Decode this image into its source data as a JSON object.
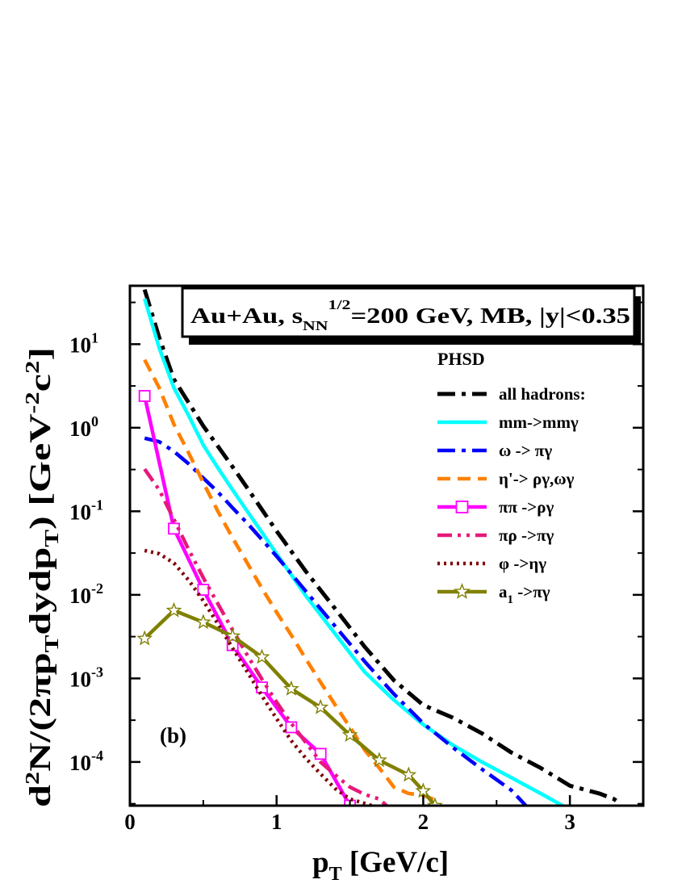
{
  "chart_data": {
    "type": "line",
    "title": "",
    "xlabel": "p_T [GeV/c]",
    "ylabel": "d^2N/(2πp_T dydp_T) [GeV^-2 c^2]",
    "xlim": [
      0,
      3.5
    ],
    "ylim": [
      3e-05,
      50
    ],
    "yscale": "log",
    "grid": false,
    "legend_position": "top-right",
    "legend_title": "PHSD",
    "x_ticks": [
      0,
      1,
      2,
      3
    ],
    "y_ticks": [
      0.0001,
      0.001,
      0.01,
      0.1,
      1,
      10
    ],
    "annotations": {
      "panel_label": "(b)",
      "header_box": "Au+Au, s_NN^1/2=200 GeV, MB, |y|<0.35"
    },
    "series": [
      {
        "name": "all hadrons:",
        "color": "#000000",
        "dash": "dashdot",
        "x": [
          0.1,
          0.2,
          0.3,
          0.4,
          0.5,
          0.6,
          0.7,
          0.8,
          0.9,
          1.0,
          1.2,
          1.4,
          1.6,
          1.8,
          2.0,
          2.2,
          2.4,
          2.6,
          2.8,
          3.0,
          3.2,
          3.3,
          3.35
        ],
        "y": [
          45,
          12,
          3.8,
          2.0,
          1.05,
          0.6,
          0.34,
          0.19,
          0.105,
          0.058,
          0.019,
          0.0068,
          0.0024,
          0.00095,
          0.00048,
          0.00034,
          0.00022,
          0.00013,
          8.5e-05,
          5.2e-05,
          4.2e-05,
          3.6e-05,
          3.1e-05
        ]
      },
      {
        "name": "mm->mmγ",
        "color": "#00ffff",
        "dash": "solid",
        "x": [
          0.1,
          0.2,
          0.3,
          0.4,
          0.5,
          0.6,
          0.7,
          0.8,
          0.9,
          1.0,
          1.2,
          1.4,
          1.6,
          1.8,
          2.0,
          2.2,
          2.4,
          2.6,
          2.8,
          2.95
        ],
        "y": [
          35,
          9,
          3.0,
          1.4,
          0.62,
          0.33,
          0.18,
          0.1,
          0.056,
          0.031,
          0.0097,
          0.0034,
          0.0012,
          0.00055,
          0.00028,
          0.00016,
          0.0001,
          6.5e-05,
          4.2e-05,
          3e-05
        ]
      },
      {
        "name": "ω -> πγ",
        "color": "#0000ff",
        "dash": "dashdot",
        "x": [
          0.1,
          0.2,
          0.3,
          0.4,
          0.5,
          0.6,
          0.7,
          0.8,
          0.9,
          1.0,
          1.2,
          1.4,
          1.6,
          1.8,
          2.0,
          2.2,
          2.4,
          2.6,
          2.7
        ],
        "y": [
          0.75,
          0.68,
          0.52,
          0.37,
          0.25,
          0.17,
          0.11,
          0.072,
          0.046,
          0.029,
          0.011,
          0.0042,
          0.0016,
          0.00065,
          0.00029,
          0.00015,
          8.2e-05,
          4.6e-05,
          3e-05
        ]
      },
      {
        "name": "η'-> ργ,ωγ",
        "color": "#ff8000",
        "dash": "dashed",
        "x": [
          0.1,
          0.2,
          0.3,
          0.4,
          0.5,
          0.6,
          0.7,
          0.8,
          0.9,
          1.0,
          1.1,
          1.2,
          1.3,
          1.4,
          1.5,
          1.6,
          1.7,
          1.8,
          1.9,
          2.0,
          2.05,
          2.1
        ],
        "y": [
          6.5,
          3.0,
          1.1,
          0.5,
          0.22,
          0.1,
          0.048,
          0.024,
          0.012,
          0.0062,
          0.0033,
          0.0017,
          0.0009,
          0.00048,
          0.00026,
          0.00014,
          8.5e-05,
          5e-05,
          4.2e-05,
          4e-05,
          3.7e-05,
          3.4e-05
        ]
      },
      {
        "name": "ππ ->ργ",
        "color": "#ff00ff",
        "dash": "solid",
        "marker": "square",
        "x": [
          0.1,
          0.3,
          0.5,
          0.7,
          0.9,
          1.1,
          1.3,
          1.5
        ],
        "y": [
          2.4,
          0.062,
          0.0115,
          0.0025,
          0.00078,
          0.00026,
          0.000125,
          3e-05
        ]
      },
      {
        "name": "πρ ->πγ",
        "color": "#e6197a",
        "dash": "dashdotdot",
        "x": [
          0.1,
          0.2,
          0.3,
          0.4,
          0.5,
          0.6,
          0.7,
          0.8,
          0.9,
          1.0,
          1.1,
          1.2,
          1.3,
          1.4,
          1.5,
          1.6,
          1.7,
          1.75
        ],
        "y": [
          0.32,
          0.18,
          0.08,
          0.035,
          0.016,
          0.0078,
          0.0038,
          0.0019,
          0.00098,
          0.00052,
          0.00029,
          0.00017,
          0.0001,
          7e-05,
          5e-05,
          4.1e-05,
          3.6e-05,
          3e-05
        ]
      },
      {
        "name": "φ ->ηγ",
        "color": "#800000",
        "dash": "dotted",
        "x": [
          0.1,
          0.2,
          0.3,
          0.4,
          0.5,
          0.6,
          0.7,
          0.8,
          0.9,
          1.0,
          1.1,
          1.2,
          1.3,
          1.4,
          1.5,
          1.6,
          1.65
        ],
        "y": [
          0.034,
          0.031,
          0.024,
          0.015,
          0.0085,
          0.0045,
          0.0023,
          0.0012,
          0.00062,
          0.00033,
          0.00018,
          0.00011,
          7.2e-05,
          4.8e-05,
          3.6e-05,
          3.2e-05,
          3e-05
        ]
      },
      {
        "name": "a_1 ->πγ",
        "color": "#808000",
        "dash": "solid",
        "marker": "star",
        "x": [
          0.1,
          0.3,
          0.5,
          0.7,
          0.9,
          1.1,
          1.3,
          1.5,
          1.7,
          1.9,
          2.0,
          2.08
        ],
        "y": [
          0.003,
          0.0065,
          0.0047,
          0.0032,
          0.0018,
          0.00075,
          0.00045,
          0.00021,
          0.000105,
          7e-05,
          4.5e-05,
          3e-05
        ]
      }
    ]
  }
}
